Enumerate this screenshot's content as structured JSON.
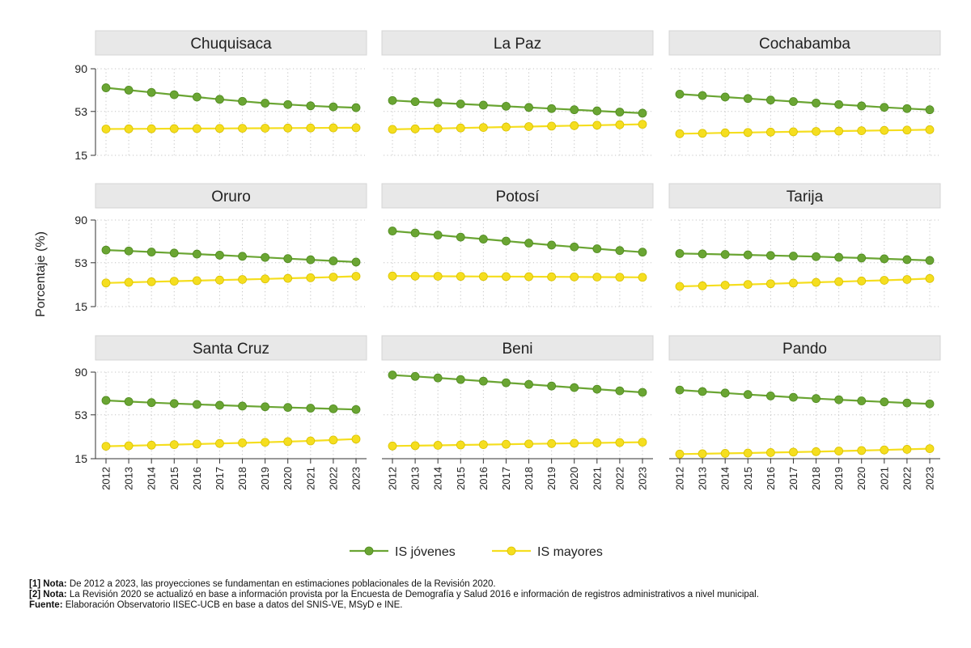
{
  "chart_data": {
    "type": "line",
    "ylabel": "Porcentaje (%)",
    "ylim": [
      15,
      90
    ],
    "yticks": [
      15,
      53,
      90
    ],
    "x": [
      "2012",
      "2013",
      "2014",
      "2015",
      "2016",
      "2017",
      "2018",
      "2019",
      "2020",
      "2021",
      "2022",
      "2023"
    ],
    "grid": true,
    "legend_position": "bottom",
    "colors": {
      "IS jóvenes": "#6aa533",
      "IS mayores": "#f5de1f"
    },
    "legend": [
      "IS jóvenes",
      "IS mayores"
    ],
    "panels": [
      {
        "title": "Chuquisaca",
        "series": [
          {
            "name": "IS jóvenes",
            "values": [
              73.5,
              71.5,
              69.5,
              67.5,
              65.5,
              63.5,
              61.8,
              60.2,
              59,
              57.9,
              57,
              56.3
            ]
          },
          {
            "name": "IS mayores",
            "values": [
              37.8,
              37.9,
              38,
              38.1,
              38.2,
              38.3,
              38.4,
              38.5,
              38.6,
              38.7,
              38.8,
              38.9
            ]
          }
        ]
      },
      {
        "title": "La Paz",
        "series": [
          {
            "name": "IS jóvenes",
            "values": [
              62.5,
              61.5,
              60.5,
              59.5,
              58.5,
              57.5,
              56.5,
              55.5,
              54.5,
              53.5,
              52.5,
              51.5
            ]
          },
          {
            "name": "IS mayores",
            "values": [
              37.5,
              37.9,
              38.3,
              38.7,
              39.1,
              39.5,
              39.9,
              40.3,
              40.7,
              41.1,
              41.5,
              41.9
            ]
          }
        ]
      },
      {
        "title": "Cochabamba",
        "series": [
          {
            "name": "IS jóvenes",
            "values": [
              68,
              66.8,
              65.5,
              64.2,
              62.9,
              61.6,
              60.3,
              59,
              57.8,
              56.6,
              55.5,
              54.5
            ]
          },
          {
            "name": "IS mayores",
            "values": [
              33.7,
              34.1,
              34.5,
              34.8,
              35.1,
              35.4,
              35.7,
              36,
              36.3,
              36.6,
              36.9,
              37.2
            ]
          }
        ]
      },
      {
        "title": "Oruro",
        "series": [
          {
            "name": "IS jóvenes",
            "values": [
              64,
              63.2,
              62.3,
              61.4,
              60.5,
              59.6,
              58.6,
              57.6,
              56.6,
              55.6,
              54.6,
              53.6
            ]
          },
          {
            "name": "IS mayores",
            "values": [
              35.5,
              36,
              36.5,
              37,
              37.5,
              38,
              38.5,
              39,
              39.5,
              40,
              40.6,
              41.3
            ]
          }
        ]
      },
      {
        "title": "Potosí",
        "series": [
          {
            "name": "IS jóvenes",
            "values": [
              80.5,
              78.8,
              77,
              75.2,
              73.5,
              71.8,
              70,
              68.3,
              66.7,
              65.1,
              63.6,
              62.2
            ]
          },
          {
            "name": "IS mayores",
            "values": [
              41.5,
              41.4,
              41.3,
              41.2,
              41.1,
              41,
              40.9,
              40.8,
              40.7,
              40.6,
              40.5,
              40.4
            ]
          }
        ]
      },
      {
        "title": "Tarija",
        "series": [
          {
            "name": "IS jóvenes",
            "values": [
              61,
              60.6,
              60.2,
              59.8,
              59.3,
              58.8,
              58.3,
              57.7,
              57.1,
              56.4,
              55.7,
              55
            ]
          },
          {
            "name": "IS mayores",
            "values": [
              32.5,
              33,
              33.6,
              34.2,
              34.8,
              35.4,
              36,
              36.6,
              37.2,
              37.8,
              38.5,
              39.3
            ]
          }
        ]
      },
      {
        "title": "Santa Cruz",
        "series": [
          {
            "name": "IS jóvenes",
            "values": [
              65.5,
              64.5,
              63.6,
              62.8,
              62,
              61.3,
              60.6,
              60,
              59.4,
              58.8,
              58.2,
              57.6
            ]
          },
          {
            "name": "IS mayores",
            "values": [
              25.8,
              26.2,
              26.7,
              27.2,
              27.7,
              28.2,
              28.7,
              29.2,
              29.8,
              30.4,
              31.2,
              32
            ]
          }
        ]
      },
      {
        "title": "Beni",
        "series": [
          {
            "name": "IS jóvenes",
            "values": [
              87.5,
              86.3,
              85,
              83.6,
              82.2,
              80.8,
              79.4,
              78,
              76.6,
              75.2,
              73.8,
              72.5
            ]
          },
          {
            "name": "IS mayores",
            "values": [
              26,
              26.3,
              26.6,
              26.9,
              27.2,
              27.5,
              27.8,
              28.1,
              28.4,
              28.7,
              29,
              29.3
            ]
          }
        ]
      },
      {
        "title": "Pando",
        "series": [
          {
            "name": "IS jóvenes",
            "values": [
              74.5,
              73.2,
              71.9,
              70.6,
              69.4,
              68.2,
              67.1,
              66.1,
              65.1,
              64.2,
              63.3,
              62.5
            ]
          },
          {
            "name": "IS mayores",
            "values": [
              19,
              19.3,
              19.6,
              19.9,
              20.3,
              20.7,
              21.1,
              21.6,
              22.1,
              22.6,
              23.1,
              23.7
            ]
          }
        ]
      }
    ]
  },
  "notes": {
    "note1_label": "[1] Nota:",
    "note1_text": " De 2012 a 2023, las proyecciones se fundamentan en estimaciones poblacionales de la Revisión 2020.",
    "note2_label": "[2] Nota:",
    "note2_text": " La Revisión 2020 se actualizó en base a información provista por la Encuesta de Demografía y Salud 2016 e información de registros administrativos a nivel municipal.",
    "source_label": "Fuente:",
    "source_text": " Elaboración Observatorio IISEC-UCB en base a datos del SNIS-VE, MSyD e INE."
  }
}
